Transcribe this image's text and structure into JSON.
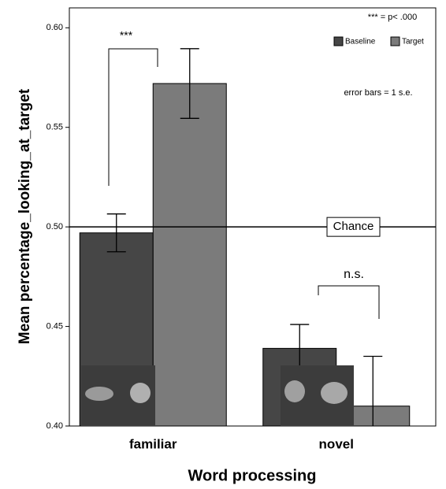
{
  "chart_data": {
    "type": "bar",
    "y_label": "Mean percentage_looking_at_target",
    "x_label": "Word processing",
    "categories": [
      "familiar",
      "novel"
    ],
    "series": [
      {
        "name": "Baseline",
        "color": "#464646",
        "values": [
          0.497,
          0.439
        ],
        "errors": [
          0.0095,
          0.012
        ]
      },
      {
        "name": "Target",
        "color": "#7b7b7b",
        "values": [
          0.572,
          0.41
        ],
        "errors": [
          0.0175,
          0.025
        ]
      }
    ],
    "ylim": [
      0.4,
      0.61
    ],
    "yticks": [
      {
        "value": 0.4,
        "label": "0.40"
      },
      0.45,
      {
        "value": 0.5,
        "label": "0.50"
      },
      0.55,
      {
        "value": 0.6,
        "label": "0.60"
      }
    ],
    "reference_line": {
      "value": 0.5,
      "label": "Chance"
    },
    "legend": "upper right",
    "annotations": [
      "***",
      "n.s.",
      "*** = p< .000",
      "error bars = 1 s.e."
    ]
  }
}
